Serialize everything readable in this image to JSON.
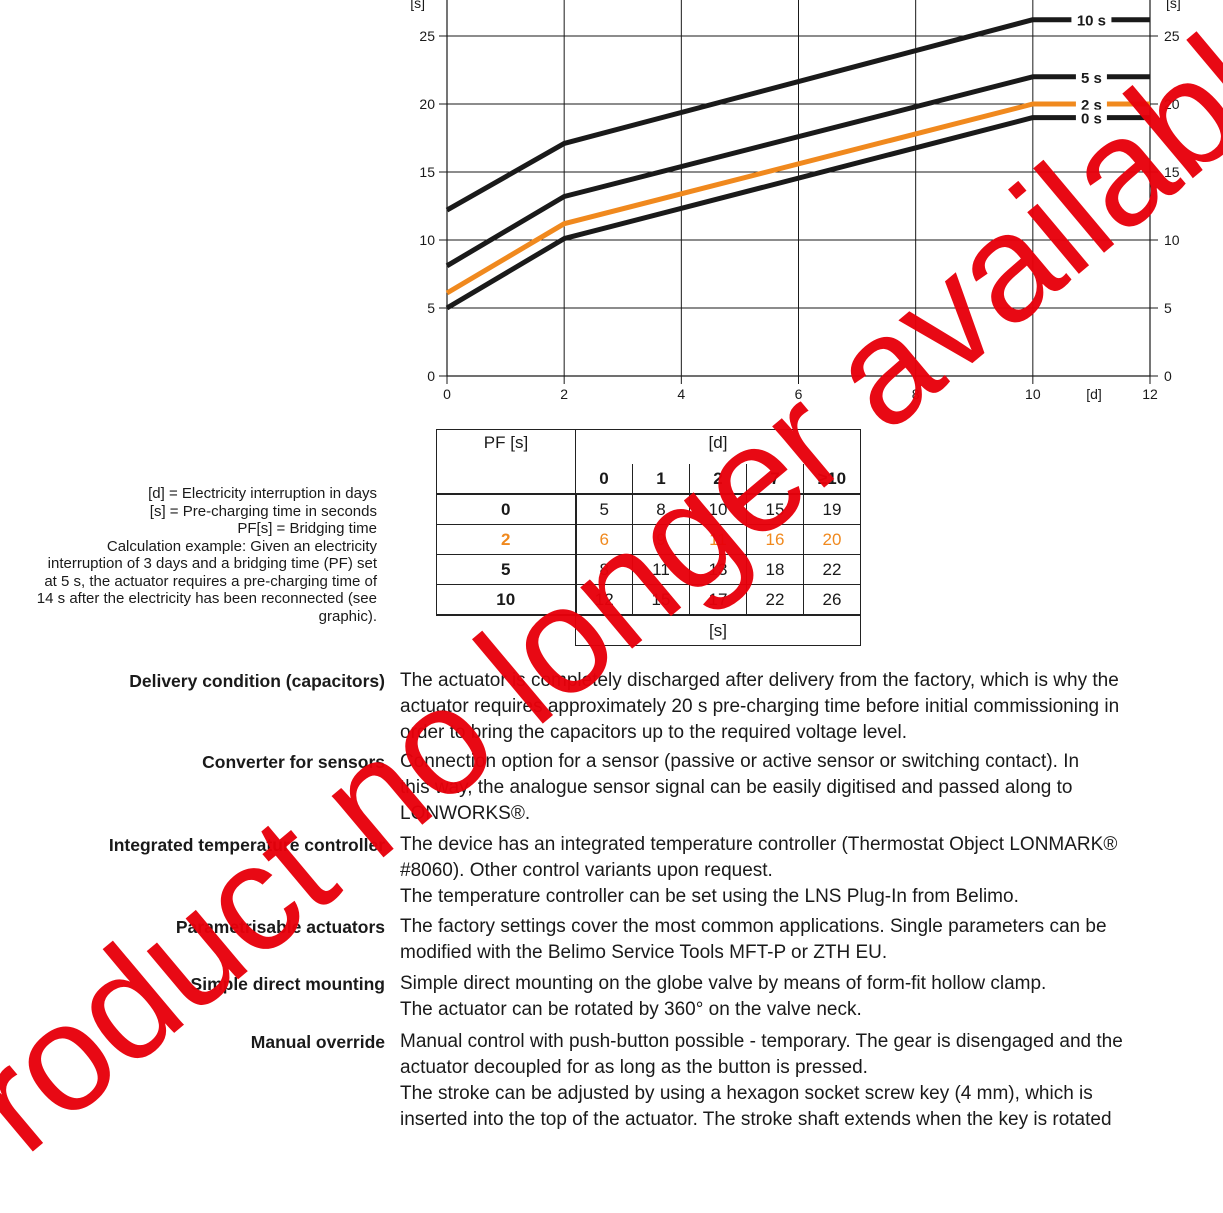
{
  "chart_data": {
    "type": "line",
    "x_ticks": [
      0,
      2,
      4,
      6,
      8,
      10,
      12
    ],
    "y_ticks": [
      0,
      5,
      10,
      15,
      20,
      25
    ],
    "xlim": [
      0,
      12
    ],
    "ylim": [
      0,
      27.5
    ],
    "grid": true,
    "x_unit_label": "[d]",
    "y_unit_label_left": "[s]",
    "y_unit_label_right": "[s]",
    "series": [
      {
        "name": "10 s",
        "color": "#1a1a1a",
        "points": [
          [
            0,
            12.2
          ],
          [
            2,
            17.1
          ],
          [
            10,
            26.2
          ],
          [
            12,
            26.2
          ]
        ]
      },
      {
        "name": "5 s",
        "color": "#1a1a1a",
        "points": [
          [
            0,
            8.1
          ],
          [
            2,
            13.2
          ],
          [
            10,
            22.0
          ],
          [
            12,
            22.0
          ]
        ]
      },
      {
        "name": "2 s",
        "color": "#f0891e",
        "points": [
          [
            0,
            6.1
          ],
          [
            2,
            11.2
          ],
          [
            10,
            20.0
          ],
          [
            12,
            20.0
          ]
        ]
      },
      {
        "name": "0 s",
        "color": "#1a1a1a",
        "points": [
          [
            0,
            5.0
          ],
          [
            2,
            10.1
          ],
          [
            10,
            19.0
          ],
          [
            12,
            19.0
          ]
        ]
      }
    ]
  },
  "table": {
    "pf_header": "PF [s]",
    "d_header": "[d]",
    "columns": [
      "0",
      "1",
      "2",
      "7",
      "≥10"
    ],
    "rows": [
      {
        "pf": "0",
        "values": [
          "5",
          "8",
          "10",
          "15",
          "19"
        ]
      },
      {
        "pf": "2",
        "values": [
          "6",
          "9",
          "11",
          "16",
          "20"
        ]
      },
      {
        "pf": "5",
        "values": [
          "8",
          "11",
          "13",
          "18",
          "22"
        ]
      },
      {
        "pf": "10",
        "values": [
          "12",
          "15",
          "17",
          "22",
          "26"
        ]
      }
    ],
    "footer_unit": "[s]"
  },
  "legend": {
    "lines": [
      "[d] = Electricity interruption in days",
      "[s] = Pre-charging time in seconds",
      "PF[s] = Bridging time",
      "Calculation example: Given an electricity",
      "interruption of 3 days and a bridging time (PF) set",
      "at 5 s, the actuator requires a pre-charging time of",
      "14 s after the electricity has been reconnected (see",
      "graphic)."
    ]
  },
  "features": [
    {
      "label": "Delivery condition (capacitors)",
      "lines": [
        "The actuator is completely discharged after delivery from the factory, which is why the",
        "actuator requires approximately 20 s pre-charging time before initial commissioning in",
        "order to bring the capacitors up to the required voltage level."
      ]
    },
    {
      "label": "Converter for sensors",
      "lines": [
        "Connection option for a sensor (passive or active sensor or switching contact). In",
        "this way, the analogue sensor signal can be easily digitised and passed along to",
        "LONWORKS®."
      ]
    },
    {
      "label": "Integrated temperature controller",
      "lines": [
        "The device has an integrated temperature controller (Thermostat Object LONMARK®",
        "#8060). Other control variants upon request.",
        "The temperature controller can be set using the LNS Plug-In from Belimo."
      ]
    },
    {
      "label": "Parametrisable actuators",
      "lines": [
        "The factory settings cover the most common applications. Single parameters can be",
        "modified with the Belimo Service Tools MFT-P or ZTH EU."
      ]
    },
    {
      "label": "Simple direct mounting",
      "lines": [
        "Simple direct mounting on the globe valve by means of form-fit hollow clamp.",
        "The actuator can be rotated by 360° on the valve neck."
      ]
    },
    {
      "label": "Manual override",
      "lines": [
        "Manual control with push-button possible - temporary. The gear is disengaged and the",
        "actuator decoupled for as long as the button is pressed.",
        "The stroke can be adjusted by using a hexagon socket screw key (4 mm), which is",
        "inserted into the top of the actuator. The stroke shaft extends when the key is rotated"
      ]
    }
  ],
  "watermark": "Product no longer available"
}
